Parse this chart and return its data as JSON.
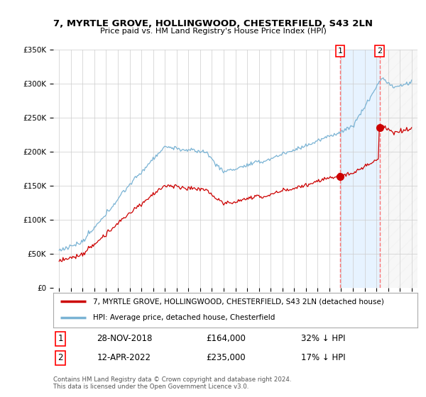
{
  "title": "7, MYRTLE GROVE, HOLLINGWOOD, CHESTERFIELD, S43 2LN",
  "subtitle": "Price paid vs. HM Land Registry's House Price Index (HPI)",
  "ylim": [
    0,
    350000
  ],
  "yticks": [
    0,
    50000,
    100000,
    150000,
    200000,
    250000,
    300000,
    350000
  ],
  "ytick_labels": [
    "£0",
    "£50K",
    "£100K",
    "£150K",
    "£200K",
    "£250K",
    "£300K",
    "£350K"
  ],
  "hpi_color": "#7ab3d4",
  "price_color": "#cc0000",
  "purchase1_year": 2018.92,
  "purchase2_year": 2022.28,
  "purchase1_price": 164000,
  "purchase2_price": 235000,
  "purchase1_date": "28-NOV-2018",
  "purchase2_date": "12-APR-2022",
  "purchase1_label": "32% ↓ HPI",
  "purchase2_label": "17% ↓ HPI",
  "legend_label1": "7, MYRTLE GROVE, HOLLINGWOOD, CHESTERFIELD, S43 2LN (detached house)",
  "legend_label2": "HPI: Average price, detached house, Chesterfield",
  "footer": "Contains HM Land Registry data © Crown copyright and database right 2024.\nThis data is licensed under the Open Government Licence v3.0.",
  "background_color": "#ffffff",
  "grid_color": "#cccccc",
  "shade_color": "#ddeeff",
  "hatch_color": "#cccccc"
}
